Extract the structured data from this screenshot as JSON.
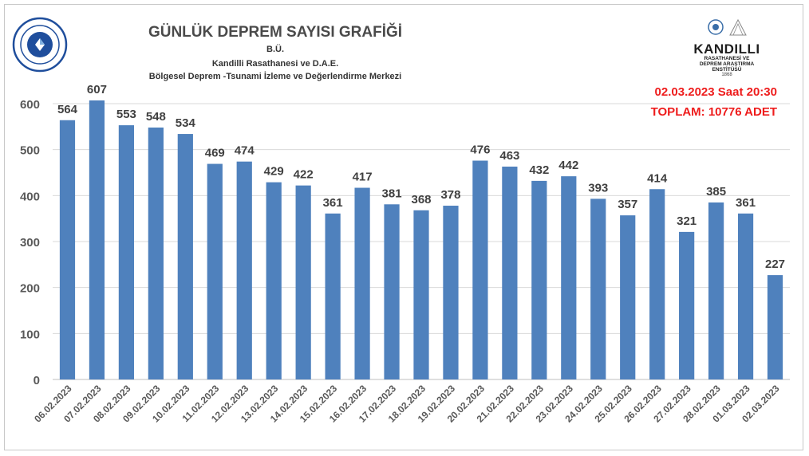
{
  "header": {
    "title": "GÜNLÜK  DEPREM SAYISI GRAFİĞİ",
    "subtitle_1": "B.Ü.",
    "subtitle_2": "Kandilli Rasathanesi ve D.A.E.",
    "subtitle_3": "Bölgesel Deprem -Tsunami İzleme ve Değerlendirme Merkezi",
    "stamp_date": "02.03.2023 Saat 20:30",
    "stamp_total": "TOPLAM:  10776 ADET"
  },
  "logos": {
    "left_icon": "bogazici-university-seal",
    "right_icon": "kandilli-observatory-logo",
    "right_name": "KANDILLI",
    "right_line1": "RASATHANESİ VE",
    "right_line2": "DEPREM ARAŞTIRMA",
    "right_line3": "ENSTİTÜSÜ",
    "right_year": "1868"
  },
  "colors": {
    "bar": "#4f81bd",
    "accent_red": "#ee1c1c",
    "grid": "#d9d9d9",
    "axis_text": "#595959",
    "label_text": "#404040"
  },
  "chart_data": {
    "type": "bar",
    "title": "GÜNLÜK  DEPREM SAYISI GRAFİĞİ",
    "xlabel": "",
    "ylabel": "",
    "ylim": [
      0,
      600
    ],
    "yticks": [
      0,
      100,
      200,
      300,
      400,
      500,
      600
    ],
    "grid": true,
    "legend": "none",
    "categories": [
      "06.02.2023",
      "07.02.2023",
      "08.02.2023",
      "09.02.2023",
      "10.02.2023",
      "11.02.2023",
      "12.02.2023",
      "13.02.2023",
      "14.02.2023",
      "15.02.2023",
      "16.02.2023",
      "17.02.2023",
      "18.02.2023",
      "19.02.2023",
      "20.02.2023",
      "21.02.2023",
      "22.02.2023",
      "23.02.2023",
      "24.02.2023",
      "25.02.2023",
      "26.02.2023",
      "27.02.2023",
      "28.02.2023",
      "01.03.2023",
      "02.03.2023"
    ],
    "values": [
      564,
      607,
      553,
      548,
      534,
      469,
      474,
      429,
      422,
      361,
      417,
      381,
      368,
      378,
      476,
      463,
      432,
      442,
      393,
      357,
      414,
      321,
      385,
      361,
      227
    ]
  }
}
